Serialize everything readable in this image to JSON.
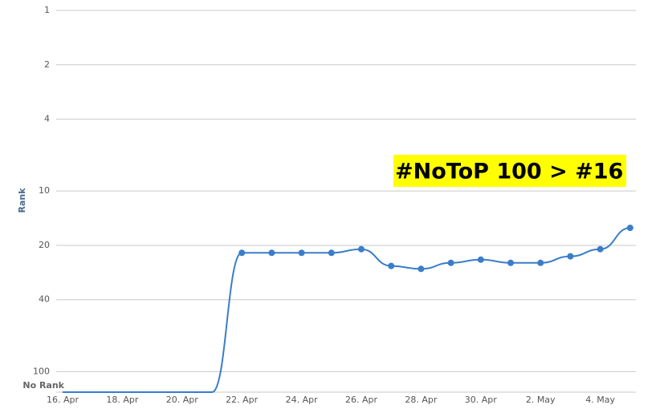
{
  "chart_data": {
    "type": "line",
    "y_axis_title": "Rank",
    "annotation": "#NoToP 100 > #16",
    "annotation_color": "#ffff00",
    "categories": [
      "16. Apr",
      null,
      "18. Apr",
      null,
      "20. Apr",
      null,
      "22. Apr",
      null,
      "24. Apr",
      null,
      "26. Apr",
      null,
      "28. Apr",
      null,
      "30. Apr",
      null,
      "2. May",
      null,
      "4. May",
      null
    ],
    "series": [
      {
        "name": "Rank",
        "color": "#3a7dc9",
        "values": [
          130,
          130,
          130,
          130,
          130,
          130,
          22,
          22,
          22,
          22,
          21,
          26,
          27,
          25,
          24,
          25,
          25,
          23,
          21,
          16
        ]
      }
    ],
    "ylim": [
      1,
      130
    ],
    "log_scale": true,
    "reversed": true,
    "yticks": [
      1,
      2,
      4,
      10,
      20,
      40,
      100,
      {
        "value": 130,
        "label": "No Rank"
      }
    ],
    "grid": true
  }
}
